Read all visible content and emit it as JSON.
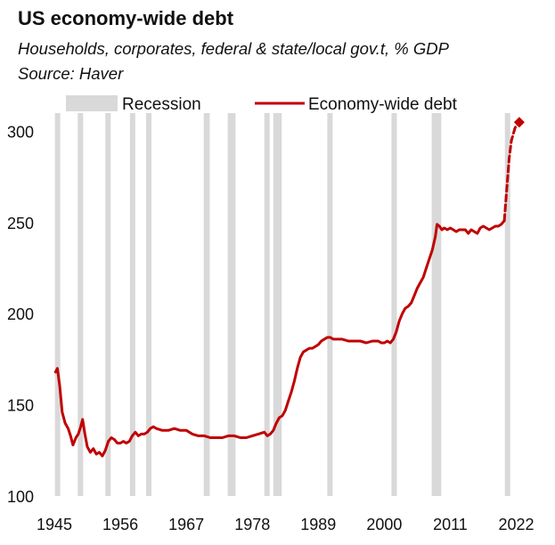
{
  "chart_data": {
    "type": "line",
    "title": "US economy-wide debt",
    "subtitle": "Households, corporates, federal & state/local gov.t, % GDP",
    "source": "Source: Haver",
    "ylim": [
      100,
      310
    ],
    "xlim": [
      1945,
      2024
    ],
    "yticks": [
      100,
      150,
      200,
      250,
      300
    ],
    "xticks": [
      1945,
      1956,
      1967,
      1978,
      1989,
      2000,
      2011,
      2022
    ],
    "grid": false,
    "legend_position": "top",
    "legend": [
      {
        "label": "Recession",
        "kind": "band",
        "color": "#d9d9d9"
      },
      {
        "label": "Economy-wide debt",
        "kind": "line",
        "color": "#c00000"
      }
    ],
    "recessions": [
      [
        1945.1,
        1945.8
      ],
      [
        1948.9,
        1949.8
      ],
      [
        1953.5,
        1954.4
      ],
      [
        1957.6,
        1958.3
      ],
      [
        1960.3,
        1961.1
      ],
      [
        1969.9,
        1970.9
      ],
      [
        1973.9,
        1975.2
      ],
      [
        1980.0,
        1980.5
      ],
      [
        1981.5,
        1982.9
      ],
      [
        1990.5,
        1991.2
      ],
      [
        2001.2,
        2001.9
      ],
      [
        2007.9,
        2009.5
      ],
      [
        2020.1,
        2020.5
      ]
    ],
    "series": [
      {
        "name": "Economy-wide debt",
        "color": "#c00000",
        "points": [
          [
            1945.2,
            168
          ],
          [
            1945.5,
            170
          ],
          [
            1945.9,
            160
          ],
          [
            1946.3,
            146
          ],
          [
            1946.8,
            140
          ],
          [
            1947.3,
            137
          ],
          [
            1947.7,
            133
          ],
          [
            1948.1,
            128
          ],
          [
            1948.6,
            132
          ],
          [
            1949.0,
            134
          ],
          [
            1949.4,
            138
          ],
          [
            1949.7,
            142
          ],
          [
            1950.1,
            134
          ],
          [
            1950.5,
            127
          ],
          [
            1951.0,
            124
          ],
          [
            1951.5,
            126
          ],
          [
            1952.0,
            123
          ],
          [
            1952.5,
            124
          ],
          [
            1953.0,
            122
          ],
          [
            1953.5,
            125
          ],
          [
            1954.0,
            130
          ],
          [
            1954.5,
            132
          ],
          [
            1955.0,
            131
          ],
          [
            1955.5,
            129
          ],
          [
            1956.0,
            129
          ],
          [
            1956.5,
            130
          ],
          [
            1957.0,
            129
          ],
          [
            1957.5,
            130
          ],
          [
            1958.0,
            133
          ],
          [
            1958.5,
            135
          ],
          [
            1959.0,
            133
          ],
          [
            1959.5,
            134
          ],
          [
            1960.0,
            134
          ],
          [
            1960.5,
            135
          ],
          [
            1961.0,
            137
          ],
          [
            1961.5,
            138
          ],
          [
            1962.0,
            137
          ],
          [
            1963.0,
            136
          ],
          [
            1964.0,
            136
          ],
          [
            1965.0,
            137
          ],
          [
            1966.0,
            136
          ],
          [
            1967.0,
            136
          ],
          [
            1968.0,
            134
          ],
          [
            1969.0,
            133
          ],
          [
            1970.0,
            133
          ],
          [
            1971.0,
            132
          ],
          [
            1972.0,
            132
          ],
          [
            1973.0,
            132
          ],
          [
            1974.0,
            133
          ],
          [
            1975.0,
            133
          ],
          [
            1976.0,
            132
          ],
          [
            1977.0,
            132
          ],
          [
            1978.0,
            133
          ],
          [
            1979.0,
            134
          ],
          [
            1980.0,
            135
          ],
          [
            1980.5,
            133
          ],
          [
            1981.0,
            134
          ],
          [
            1981.5,
            136
          ],
          [
            1982.0,
            140
          ],
          [
            1982.5,
            143
          ],
          [
            1983.0,
            144
          ],
          [
            1983.5,
            147
          ],
          [
            1984.0,
            152
          ],
          [
            1984.5,
            157
          ],
          [
            1985.0,
            163
          ],
          [
            1985.5,
            170
          ],
          [
            1986.0,
            176
          ],
          [
            1986.5,
            179
          ],
          [
            1987.0,
            180
          ],
          [
            1987.5,
            181
          ],
          [
            1988.0,
            181
          ],
          [
            1988.5,
            182
          ],
          [
            1989.0,
            183
          ],
          [
            1989.5,
            185
          ],
          [
            1990.0,
            186
          ],
          [
            1990.5,
            187
          ],
          [
            1991.0,
            187
          ],
          [
            1991.5,
            186
          ],
          [
            1992.0,
            186
          ],
          [
            1993.0,
            186
          ],
          [
            1994.0,
            185
          ],
          [
            1995.0,
            185
          ],
          [
            1996.0,
            185
          ],
          [
            1997.0,
            184
          ],
          [
            1998.0,
            185
          ],
          [
            1999.0,
            185
          ],
          [
            1999.5,
            184
          ],
          [
            2000.0,
            184
          ],
          [
            2000.5,
            185
          ],
          [
            2001.0,
            184
          ],
          [
            2001.5,
            186
          ],
          [
            2002.0,
            190
          ],
          [
            2002.5,
            196
          ],
          [
            2003.0,
            200
          ],
          [
            2003.5,
            203
          ],
          [
            2004.0,
            204
          ],
          [
            2004.5,
            206
          ],
          [
            2005.0,
            210
          ],
          [
            2005.5,
            214
          ],
          [
            2006.0,
            217
          ],
          [
            2006.5,
            220
          ],
          [
            2007.0,
            225
          ],
          [
            2007.5,
            230
          ],
          [
            2008.0,
            235
          ],
          [
            2008.5,
            242
          ],
          [
            2008.8,
            249
          ],
          [
            2009.2,
            248
          ],
          [
            2009.6,
            246
          ],
          [
            2010.0,
            247
          ],
          [
            2010.5,
            246
          ],
          [
            2011.0,
            247
          ],
          [
            2011.5,
            246
          ],
          [
            2012.0,
            245
          ],
          [
            2012.5,
            246
          ],
          [
            2013.0,
            246
          ],
          [
            2013.5,
            246
          ],
          [
            2014.0,
            244
          ],
          [
            2014.5,
            246
          ],
          [
            2015.0,
            245
          ],
          [
            2015.5,
            244
          ],
          [
            2016.0,
            247
          ],
          [
            2016.5,
            248
          ],
          [
            2017.0,
            247
          ],
          [
            2017.5,
            246
          ],
          [
            2018.0,
            247
          ],
          [
            2018.5,
            248
          ],
          [
            2019.0,
            248
          ],
          [
            2019.5,
            249
          ],
          [
            2020.0,
            251
          ]
        ],
        "projection_points": [
          [
            2020.0,
            251
          ],
          [
            2020.4,
            268
          ],
          [
            2020.8,
            285
          ],
          [
            2021.2,
            295
          ],
          [
            2021.8,
            302
          ],
          [
            2022.5,
            305
          ]
        ],
        "endpoint_marker": [
          2022.5,
          305
        ]
      }
    ]
  }
}
